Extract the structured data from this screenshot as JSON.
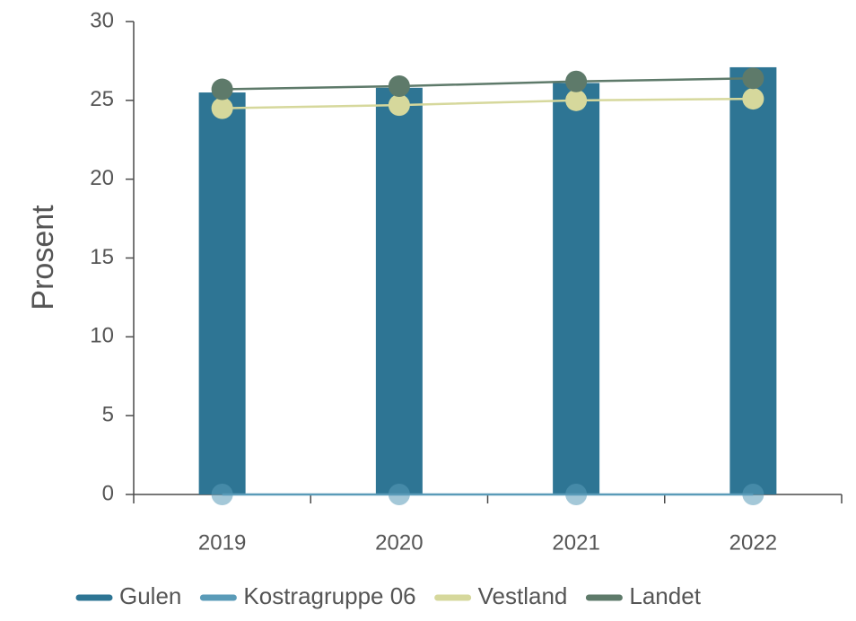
{
  "chart_data": {
    "type": "bar",
    "title": "",
    "xlabel": "",
    "ylabel": "Prosent",
    "ylim": [
      0,
      30
    ],
    "yticks": [
      0,
      5,
      10,
      15,
      20,
      25,
      30
    ],
    "categories": [
      "2019",
      "2020",
      "2021",
      "2022"
    ],
    "grid": false,
    "legend_position": "bottom",
    "series": [
      {
        "name": "Gulen",
        "kind": "bar",
        "color": "#2e7594",
        "values": [
          25.5,
          25.8,
          26.1,
          27.1
        ]
      },
      {
        "name": "Kostragruppe 06",
        "kind": "line",
        "color": "#5a9bb8",
        "values": [
          0,
          0,
          0,
          0
        ]
      },
      {
        "name": "Vestland",
        "kind": "line",
        "color": "#d6d89c",
        "values": [
          24.5,
          24.7,
          25.0,
          25.1
        ]
      },
      {
        "name": "Landet",
        "kind": "line",
        "color": "#5e7a6a",
        "values": [
          25.7,
          25.9,
          26.2,
          26.4
        ]
      }
    ]
  }
}
